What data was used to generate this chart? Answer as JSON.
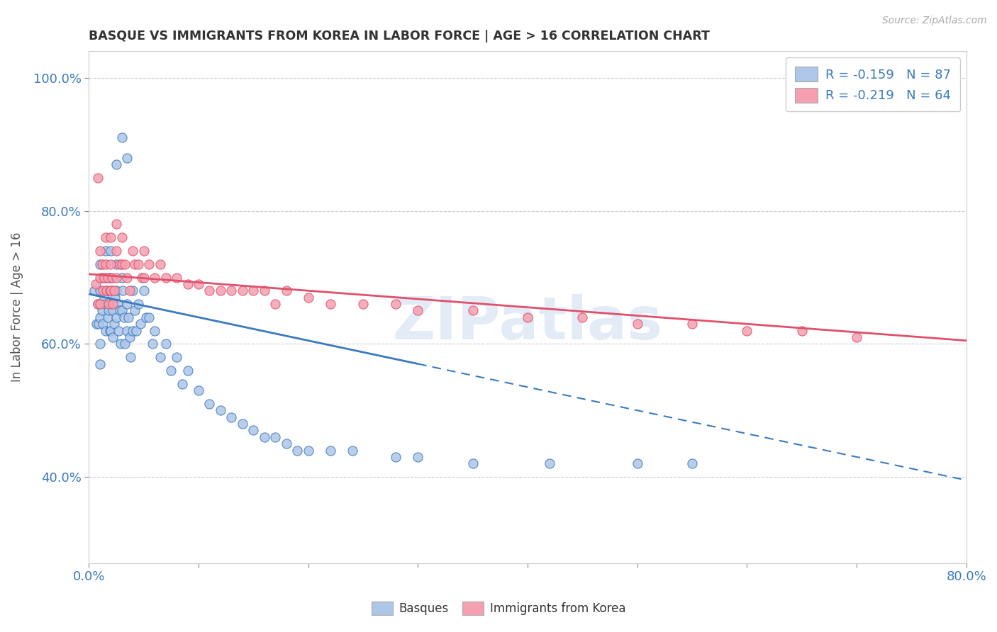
{
  "title": "BASQUE VS IMMIGRANTS FROM KOREA IN LABOR FORCE | AGE > 16 CORRELATION CHART",
  "source_text": "Source: ZipAtlas.com",
  "ylabel": "In Labor Force | Age > 16",
  "x_min": 0.0,
  "x_max": 0.8,
  "y_min": 0.27,
  "y_max": 1.04,
  "y_ticks": [
    0.4,
    0.6,
    0.8,
    1.0
  ],
  "y_tick_labels": [
    "40.0%",
    "60.0%",
    "80.0%",
    "100.0%"
  ],
  "legend_r1": "R = -0.159",
  "legend_n1": "N = 87",
  "legend_r2": "R = -0.219",
  "legend_n2": "N = 64",
  "color_basque": "#aec6e8",
  "color_korea": "#f4a0b0",
  "color_line_basque": "#3a7abf",
  "color_line_korea": "#e0506a",
  "watermark": "ZIPatlas",
  "basque_line_start_x": 0.0,
  "basque_line_end_x": 0.8,
  "basque_line_solid_end_x": 0.3,
  "basque_line_start_y": 0.675,
  "basque_line_end_y": 0.395,
  "korea_line_start_x": 0.0,
  "korea_line_end_x": 0.8,
  "korea_line_start_y": 0.705,
  "korea_line_end_y": 0.605,
  "basque_x": [
    0.005,
    0.007,
    0.008,
    0.009,
    0.01,
    0.01,
    0.01,
    0.01,
    0.01,
    0.012,
    0.012,
    0.013,
    0.014,
    0.015,
    0.015,
    0.015,
    0.015,
    0.016,
    0.017,
    0.018,
    0.018,
    0.019,
    0.02,
    0.02,
    0.02,
    0.02,
    0.021,
    0.022,
    0.022,
    0.023,
    0.024,
    0.025,
    0.025,
    0.025,
    0.026,
    0.027,
    0.028,
    0.029,
    0.03,
    0.03,
    0.031,
    0.032,
    0.033,
    0.035,
    0.035,
    0.036,
    0.037,
    0.038,
    0.04,
    0.04,
    0.042,
    0.043,
    0.045,
    0.047,
    0.05,
    0.052,
    0.055,
    0.058,
    0.06,
    0.065,
    0.07,
    0.075,
    0.08,
    0.085,
    0.09,
    0.1,
    0.11,
    0.12,
    0.13,
    0.14,
    0.15,
    0.16,
    0.17,
    0.18,
    0.19,
    0.2,
    0.22,
    0.24,
    0.28,
    0.3,
    0.35,
    0.42,
    0.5,
    0.55,
    0.025,
    0.03,
    0.035
  ],
  "basque_y": [
    0.68,
    0.63,
    0.66,
    0.63,
    0.72,
    0.68,
    0.64,
    0.6,
    0.57,
    0.7,
    0.65,
    0.63,
    0.67,
    0.74,
    0.7,
    0.66,
    0.62,
    0.68,
    0.64,
    0.7,
    0.65,
    0.62,
    0.74,
    0.7,
    0.66,
    0.62,
    0.68,
    0.65,
    0.61,
    0.63,
    0.67,
    0.72,
    0.68,
    0.64,
    0.66,
    0.62,
    0.65,
    0.6,
    0.7,
    0.65,
    0.68,
    0.64,
    0.6,
    0.66,
    0.62,
    0.64,
    0.61,
    0.58,
    0.68,
    0.62,
    0.65,
    0.62,
    0.66,
    0.63,
    0.68,
    0.64,
    0.64,
    0.6,
    0.62,
    0.58,
    0.6,
    0.56,
    0.58,
    0.54,
    0.56,
    0.53,
    0.51,
    0.5,
    0.49,
    0.48,
    0.47,
    0.46,
    0.46,
    0.45,
    0.44,
    0.44,
    0.44,
    0.44,
    0.43,
    0.43,
    0.42,
    0.42,
    0.42,
    0.42,
    0.87,
    0.91,
    0.88
  ],
  "korea_x": [
    0.006,
    0.008,
    0.01,
    0.01,
    0.01,
    0.012,
    0.013,
    0.014,
    0.015,
    0.015,
    0.016,
    0.017,
    0.018,
    0.019,
    0.02,
    0.02,
    0.02,
    0.021,
    0.022,
    0.023,
    0.025,
    0.025,
    0.025,
    0.028,
    0.03,
    0.03,
    0.033,
    0.035,
    0.037,
    0.04,
    0.042,
    0.045,
    0.048,
    0.05,
    0.05,
    0.055,
    0.06,
    0.065,
    0.07,
    0.08,
    0.09,
    0.1,
    0.11,
    0.12,
    0.13,
    0.14,
    0.15,
    0.16,
    0.17,
    0.18,
    0.2,
    0.22,
    0.25,
    0.28,
    0.3,
    0.35,
    0.4,
    0.45,
    0.5,
    0.55,
    0.6,
    0.65,
    0.7,
    0.008
  ],
  "korea_y": [
    0.69,
    0.66,
    0.74,
    0.7,
    0.66,
    0.72,
    0.68,
    0.7,
    0.76,
    0.72,
    0.68,
    0.7,
    0.66,
    0.68,
    0.76,
    0.72,
    0.68,
    0.7,
    0.66,
    0.68,
    0.78,
    0.74,
    0.7,
    0.72,
    0.76,
    0.72,
    0.72,
    0.7,
    0.68,
    0.74,
    0.72,
    0.72,
    0.7,
    0.74,
    0.7,
    0.72,
    0.7,
    0.72,
    0.7,
    0.7,
    0.69,
    0.69,
    0.68,
    0.68,
    0.68,
    0.68,
    0.68,
    0.68,
    0.66,
    0.68,
    0.67,
    0.66,
    0.66,
    0.66,
    0.65,
    0.65,
    0.64,
    0.64,
    0.63,
    0.63,
    0.62,
    0.62,
    0.61,
    0.85
  ],
  "background_color": "#ffffff",
  "grid_color": "#cccccc",
  "title_color": "#333333",
  "tick_color": "#3a7abf"
}
